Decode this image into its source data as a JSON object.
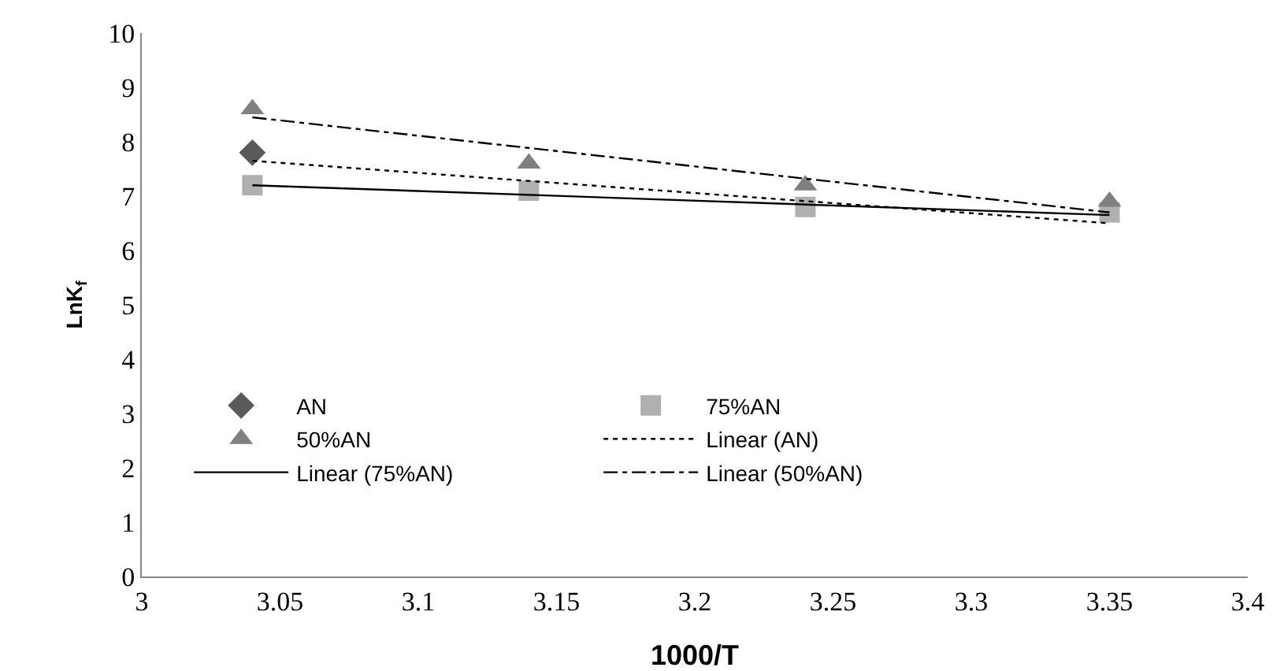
{
  "chart_data": {
    "type": "scatter",
    "xlabel": "1000/T",
    "ylabel": "LnK$_{f}$",
    "xlim": [
      3,
      3.4
    ],
    "xticks": [
      3,
      3.05,
      3.1,
      3.15,
      3.2,
      3.25,
      3.3,
      3.35,
      3.4
    ],
    "ylim": [
      0,
      10
    ],
    "yticks": [
      0,
      1,
      2,
      3,
      4,
      5,
      6,
      7,
      8,
      9,
      10
    ],
    "grid": false,
    "legend": "bottom",
    "series": [
      {
        "name": "AN",
        "color": "#5a5a5a",
        "marker": "diamond",
        "x": [
          3.04
        ],
        "values": [
          7.8
        ]
      },
      {
        "name": "75%AN",
        "color": "#b0b0b0",
        "marker": "square",
        "x": [
          3.04,
          3.14,
          3.24,
          3.35
        ],
        "values": [
          7.2,
          7.1,
          6.8,
          6.7
        ]
      },
      {
        "name": "50%AN",
        "color": "#808080",
        "marker": "triangle",
        "x": [
          3.04,
          3.14,
          3.24,
          3.35
        ],
        "values": [
          8.6,
          7.6,
          7.2,
          6.9
        ]
      },
      {
        "name": "Linear (AN)",
        "type": "line",
        "color": "#000000",
        "line_style": "dotted",
        "marker": "none",
        "x": [
          3.04,
          3.35
        ],
        "values": [
          7.65,
          6.5
        ]
      },
      {
        "name": "Linear (75%AN)",
        "type": "line",
        "color": "#000000",
        "line_style": "solid",
        "marker": "none",
        "x": [
          3.04,
          3.35
        ],
        "values": [
          7.2,
          6.65
        ]
      },
      {
        "name": "Linear (50%AN)",
        "type": "line",
        "color": "#000000",
        "line_style": "dashdot",
        "marker": "none",
        "x": [
          3.04,
          3.35
        ],
        "values": [
          8.45,
          6.7
        ]
      }
    ]
  }
}
